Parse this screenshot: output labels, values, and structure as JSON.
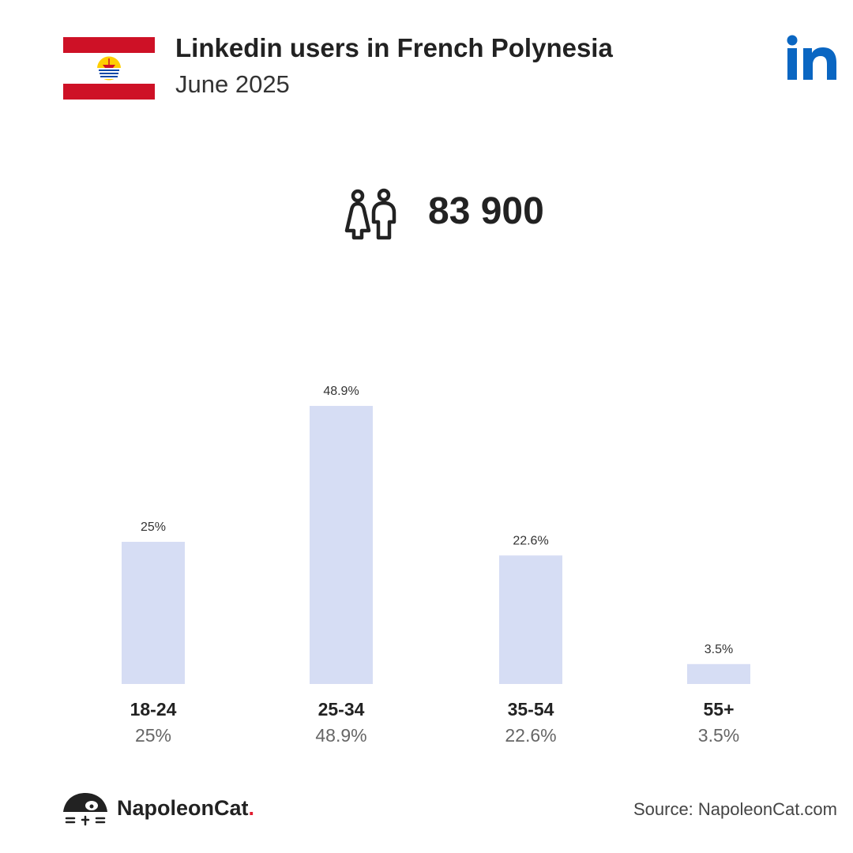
{
  "header": {
    "title": "Linkedin users in French Polynesia",
    "subtitle": "June 2025",
    "flag_icon": "french-polynesia-flag",
    "logo_icon": "linkedin-logo",
    "colors": {
      "flag_red": "#ce1126",
      "linkedin_blue": "#0a66c2"
    }
  },
  "summary": {
    "icon": "people-icon",
    "total_users": "83 900"
  },
  "chart_data": {
    "type": "bar",
    "categories": [
      "18-24",
      "25-34",
      "35-54",
      "55+"
    ],
    "values": [
      25,
      48.9,
      22.6,
      3.5
    ],
    "value_labels": [
      "25%",
      "48.9%",
      "22.6%",
      "3.5%"
    ],
    "unit": "%",
    "grid": false,
    "legend": "none",
    "colors": {
      "bar": "#d6ddf4",
      "label": "#222222",
      "sublabel": "#666666"
    }
  },
  "footer": {
    "brand_name": "NapoleonCat",
    "brand_dot": ".",
    "brand_icon": "napoleoncat-logo",
    "source": "Source: NapoleonCat.com"
  }
}
